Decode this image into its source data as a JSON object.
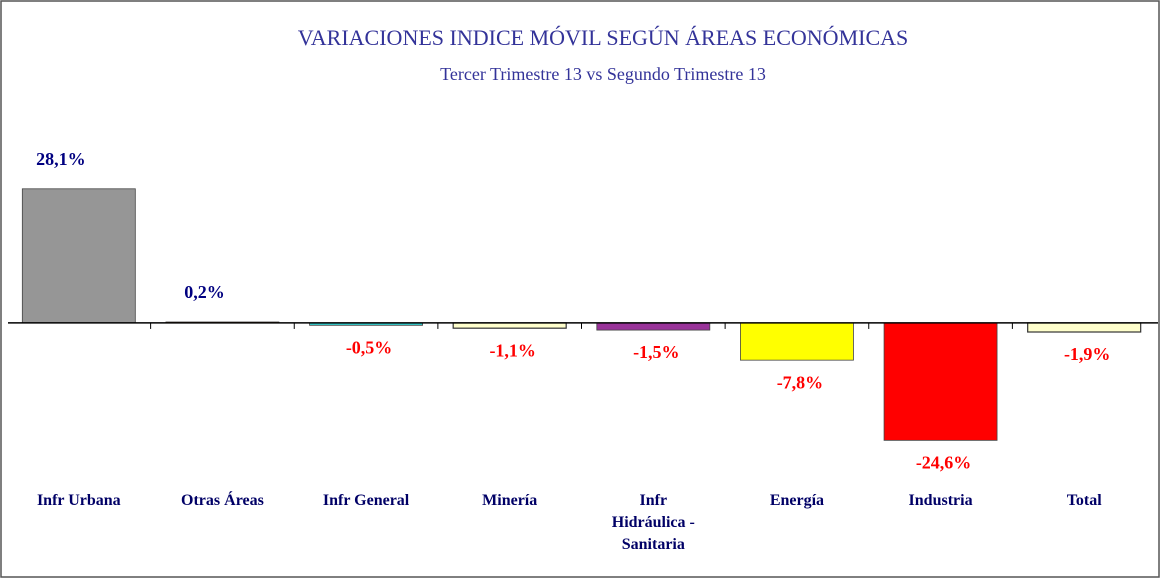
{
  "chart_data": {
    "type": "bar",
    "title": "VARIACIONES INDICE MÓVIL SEGÚN ÁREAS ECONÓMICAS",
    "subtitle": "Tercer Trimestre 13 vs Segundo Trimestre 13",
    "categories": [
      "Infr Urbana",
      "Otras Áreas",
      "Infr General",
      "Minería",
      "Infr Hidráulica - Sanitaria",
      "Energía",
      "Industria",
      "Total"
    ],
    "values": [
      28.1,
      0.2,
      -0.5,
      -1.1,
      -1.5,
      -7.8,
      -24.6,
      -1.9
    ],
    "value_labels": [
      "28,1%",
      "0,2%",
      "-0,5%",
      "-1,1%",
      "-1,5%",
      "-7,8%",
      "-24,6%",
      "-1,9%"
    ],
    "colors": [
      "#969696",
      "#e46c0a",
      "#33cccc",
      "#ffffcc",
      "#993399",
      "#ffff00",
      "#ff0000",
      "#ffffcc"
    ],
    "positive_label_color": "#000080",
    "negative_label_color": "#ff0000",
    "ylim": [
      -35,
      40
    ]
  }
}
